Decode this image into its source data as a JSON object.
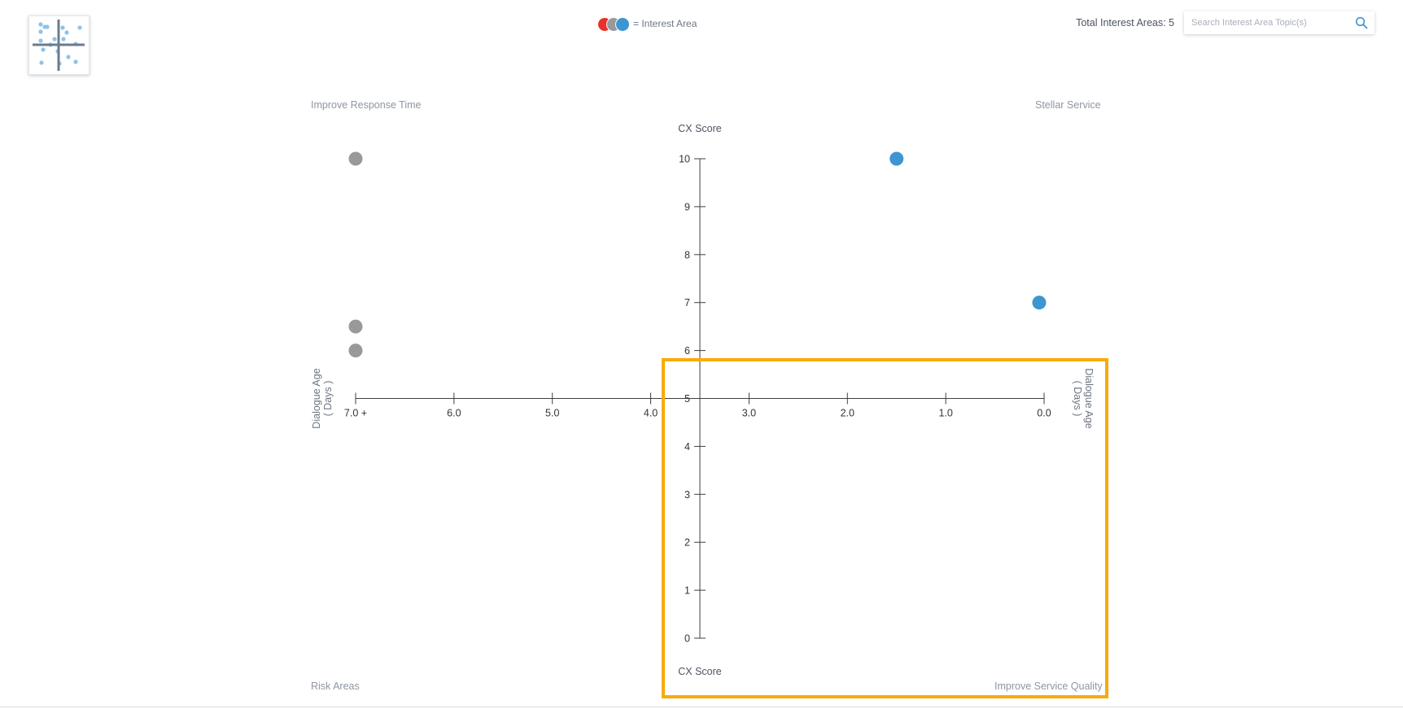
{
  "header": {
    "legend_text": "= Interest Area",
    "total_text": "Total Interest Areas: 5",
    "search_placeholder": "Search Interest Area Topic(s)"
  },
  "quadrants": {
    "top_left": "Improve Response Time",
    "top_right": "Stellar Service",
    "bottom_left": "Risk Areas",
    "bottom_right": "Improve Service Quality"
  },
  "colors": {
    "legend_dots": [
      "#e8312a",
      "#999999",
      "#3d95d1"
    ],
    "highlight_box": "#f7ab0b"
  },
  "chart_data": {
    "type": "scatter",
    "x_axis": {
      "label": "Dialogue Age ( Days )",
      "ticks": [
        7.0,
        6.0,
        5.0,
        4.0,
        3.0,
        2.0,
        1.0,
        0.0
      ],
      "tick_labels": [
        "7.0 +",
        "6.0",
        "5.0",
        "4.0",
        "3.0",
        "2.0",
        "1.0",
        "0.0"
      ],
      "range": [
        7,
        0
      ]
    },
    "y_axis": {
      "label_top": "CX Score",
      "label_bottom": "CX Score",
      "ticks": [
        0,
        1,
        2,
        3,
        4,
        5,
        6,
        7,
        8,
        9,
        10
      ],
      "range": [
        0,
        10
      ],
      "crosses_at_x": 3.5
    },
    "x_axis_crosses_at_y": 5,
    "points": [
      {
        "x": 7.0,
        "y": 10,
        "color": "#999999"
      },
      {
        "x": 7.0,
        "y": 6.5,
        "color": "#999999"
      },
      {
        "x": 7.0,
        "y": 6,
        "color": "#999999"
      },
      {
        "x": 1.5,
        "y": 10,
        "color": "#3d95d1"
      },
      {
        "x": 0.05,
        "y": 7,
        "color": "#3d95d1"
      }
    ]
  }
}
